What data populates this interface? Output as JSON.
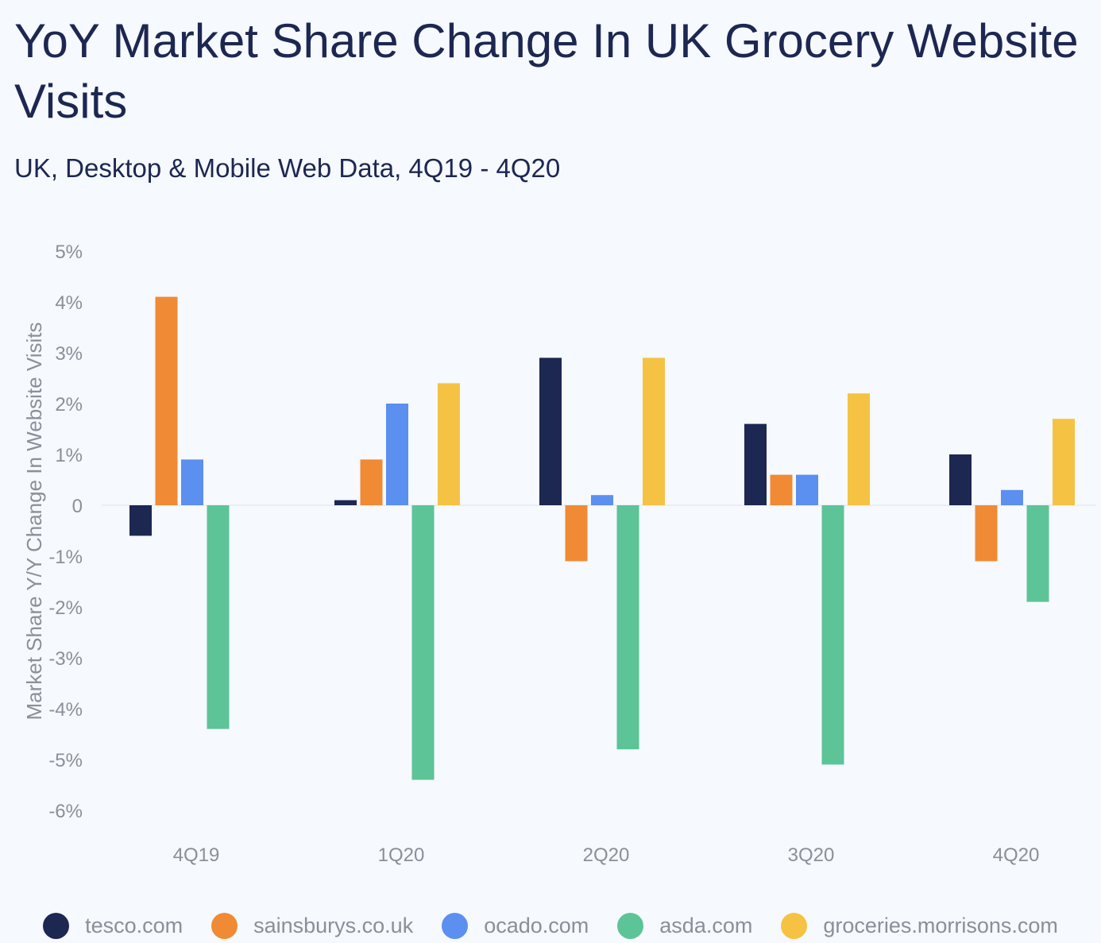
{
  "title": "YoY Market Share Change In UK Grocery Website Visits",
  "subtitle": "UK, Desktop & Mobile Web Data, 4Q19 - 4Q20",
  "chart_data": {
    "type": "bar",
    "categories": [
      "4Q19",
      "1Q20",
      "2Q20",
      "3Q20",
      "4Q20"
    ],
    "ylabel": "Market Share Y/Y Change In Website Visits",
    "xlabel": "",
    "ylim": [
      -6,
      5
    ],
    "yticks": [
      5,
      4,
      3,
      2,
      1,
      0,
      -1,
      -2,
      -3,
      -4,
      -5,
      -6
    ],
    "ytick_labels": [
      "5%",
      "4%",
      "3%",
      "2%",
      "1%",
      "0",
      "-1%",
      "-2%",
      "-3%",
      "-4%",
      "-5%",
      "-6%"
    ],
    "legend_position": "bottom",
    "grid": false,
    "series": [
      {
        "name": "tesco.com",
        "color": "#1c2752",
        "values": [
          -0.6,
          0.1,
          2.9,
          1.6,
          1.0
        ]
      },
      {
        "name": "sainsburys.co.uk",
        "color": "#f08a35",
        "values": [
          4.1,
          0.9,
          -1.1,
          0.6,
          -1.1
        ]
      },
      {
        "name": "ocado.com",
        "color": "#5b8ff0",
        "values": [
          0.9,
          2.0,
          0.2,
          0.6,
          0.3
        ]
      },
      {
        "name": "asda.com",
        "color": "#5cc497",
        "values": [
          -4.4,
          -5.4,
          -4.8,
          -5.1,
          -1.9
        ]
      },
      {
        "name": "groceries.morrisons.com",
        "color": "#f6c244",
        "values": [
          null,
          2.4,
          2.9,
          2.2,
          1.7
        ]
      }
    ]
  }
}
